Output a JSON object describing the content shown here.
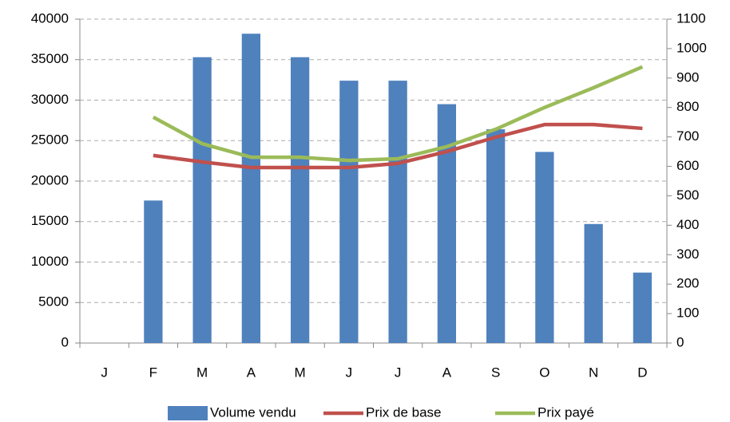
{
  "chart_data": {
    "type": "bar_line",
    "categories": [
      "J",
      "F",
      "M",
      "A",
      "M",
      "J",
      "J",
      "A",
      "S",
      "O",
      "N",
      "D"
    ],
    "series": [
      {
        "name": "Volume vendu",
        "type": "bar",
        "color": "#4f81bd",
        "values": [
          null,
          17600,
          35300,
          38200,
          35300,
          32400,
          32400,
          29500,
          26400,
          23600,
          14700,
          8700
        ]
      },
      {
        "name": "Prix de base",
        "type": "line",
        "axis": "y2",
        "color": "#c0504d",
        "values": [
          null,
          637,
          615,
          596,
          596,
          596,
          610,
          650,
          699,
          742,
          742,
          729
        ]
      },
      {
        "name": "Prix payé",
        "type": "line",
        "axis": "y2",
        "color": "#9bbb59",
        "values": [
          null,
          767,
          677,
          631,
          631,
          620,
          626,
          667,
          726,
          800,
          867,
          938
        ]
      }
    ],
    "ylim": [
      0,
      40000
    ],
    "yticks": [
      0,
      5000,
      10000,
      15000,
      20000,
      25000,
      30000,
      35000,
      40000
    ],
    "y2lim": [
      0,
      1100
    ],
    "y2ticks": [
      0,
      100,
      200,
      300,
      400,
      500,
      600,
      700,
      800,
      900,
      1000,
      1100
    ],
    "grid": true,
    "legend": "bottom"
  }
}
